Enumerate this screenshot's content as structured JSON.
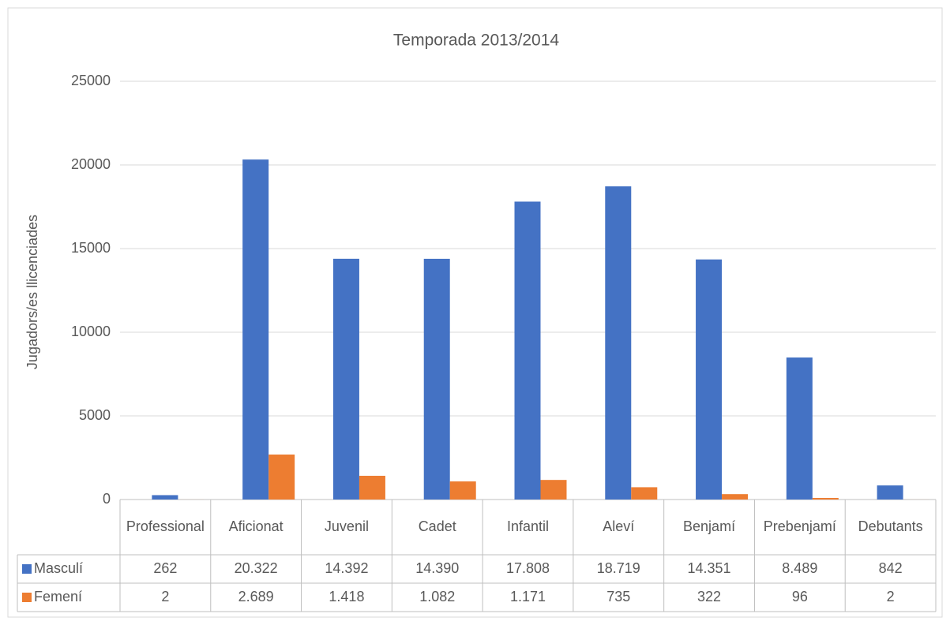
{
  "chart_data": {
    "type": "bar",
    "title": "Temporada 2013/2014",
    "y_label": "Jugadors/es llicenciades",
    "categories": [
      "Professional",
      "Aficionat",
      "Juvenil",
      "Cadet",
      "Infantil",
      "Aleví",
      "Benjamí",
      "Prebenjamí",
      "Debutants"
    ],
    "series": [
      {
        "name": "Masculí",
        "color": "#4472c4",
        "values": [
          262,
          20322,
          14392,
          14390,
          17808,
          18719,
          14351,
          8489,
          842
        ],
        "value_labels": [
          "262",
          "20.322",
          "14.392",
          "14.390",
          "17.808",
          "18.719",
          "14.351",
          "8.489",
          "842"
        ]
      },
      {
        "name": "Femení",
        "color": "#ed7d31",
        "values": [
          2,
          2689,
          1418,
          1082,
          1171,
          735,
          322,
          96,
          2
        ],
        "value_labels": [
          "2",
          "2.689",
          "1.418",
          "1.082",
          "1.171",
          "735",
          "322",
          "96",
          "2"
        ]
      }
    ],
    "ylim": [
      0,
      25000
    ],
    "yticks": [
      0,
      5000,
      10000,
      15000,
      20000,
      25000
    ],
    "grid": true
  }
}
